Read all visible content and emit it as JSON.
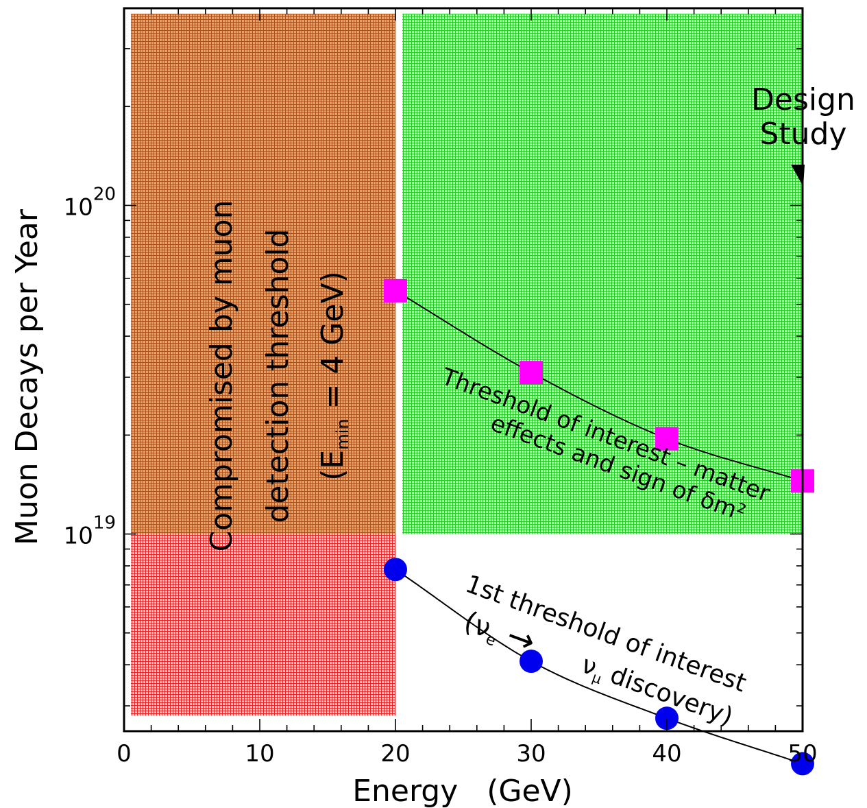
{
  "chart_data": {
    "type": "scatter",
    "xlabel": "Energy   (GeV)",
    "ylabel": "Muon Decays per Year",
    "xlim": [
      0,
      50
    ],
    "ylim_log10": [
      18.4,
      20.6
    ],
    "y_scale": "log",
    "x_ticks": [
      "0",
      "10",
      "20",
      "30",
      "40",
      "50"
    ],
    "y_tick_labels": [
      {
        "base": "10",
        "exp": "19",
        "value": 1e+19
      },
      {
        "base": "10",
        "exp": "20",
        "value": 1e+20
      }
    ],
    "grid": false,
    "regions": [
      {
        "x": [
          0,
          20
        ],
        "y": [
          2.8e+18,
          1e+19
        ],
        "color": "#ee2222"
      },
      {
        "x": [
          20,
          50
        ],
        "y": [
          1e+19,
          4e+20
        ],
        "color": "#22cc22"
      },
      {
        "x": [
          0,
          20
        ],
        "y": [
          1e+19,
          4e+20
        ],
        "color": "#aa6020"
      }
    ],
    "series": [
      {
        "marker": "square",
        "color": "#ff00ff",
        "x": [
          20,
          30,
          40,
          50
        ],
        "y": [
          5.5e+19,
          3.1e+19,
          1.95e+19,
          1.45e+19
        ]
      },
      {
        "marker": "circle",
        "color": "#0000ee",
        "x": [
          20,
          30,
          40,
          50
        ],
        "y": [
          7.8e+18,
          4.1e+18,
          2.75e+18,
          2e+18
        ]
      }
    ],
    "annotations": {
      "design_study": [
        "Design",
        "Study"
      ],
      "compromised": [
        "Compromised by muon",
        "detection threshold"
      ],
      "emin": {
        "open": "(E",
        "sub": "min",
        "rest": " = 4 GeV)"
      },
      "matter": [
        "Threshold of interest – matter",
        "effects and sign of δm²"
      ],
      "first_threshold_line1": "1st threshold of interest",
      "first_threshold_nu_e": {
        "open": "(ν",
        "sub": "e",
        "arrow": "→"
      },
      "first_threshold_nu_mu": {
        "nu": "ν",
        "sub": "μ",
        "rest": " discovery)"
      }
    }
  }
}
